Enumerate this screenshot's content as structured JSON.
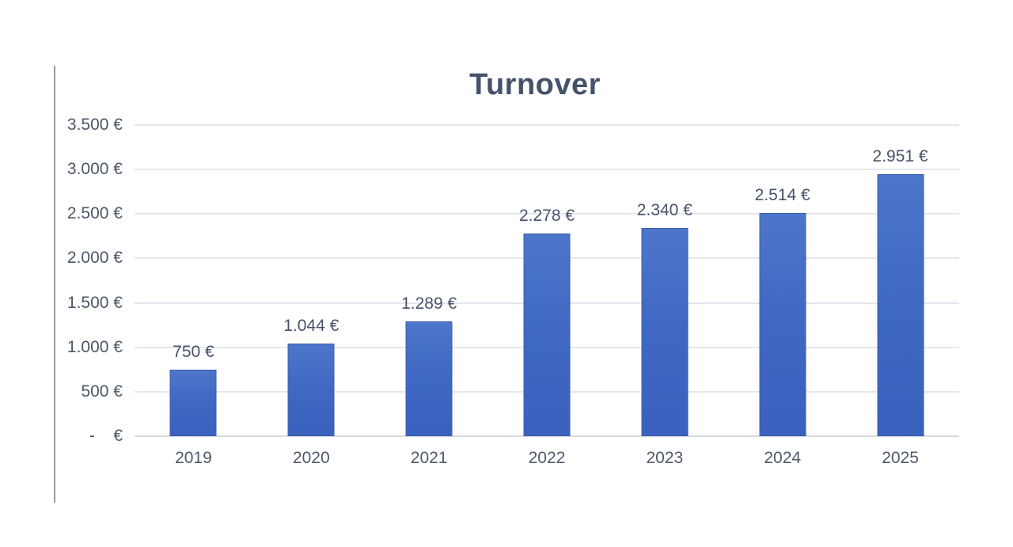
{
  "chart_data": {
    "type": "bar",
    "title": "Turnover",
    "categories": [
      "2019",
      "2020",
      "2021",
      "2022",
      "2023",
      "2024",
      "2025"
    ],
    "values": [
      750,
      1044,
      1289,
      2278,
      2340,
      2514,
      2951
    ],
    "bar_labels": [
      "750 €",
      "1.044 €",
      "1.289 €",
      "2.278 €",
      "2.340 €",
      "2.514 €",
      "2.951 €"
    ],
    "xlabel": "",
    "ylabel": "",
    "ylim": [
      0,
      3500
    ],
    "y_ticks": [
      {
        "value": 3500,
        "label": "3.500 €"
      },
      {
        "value": 3000,
        "label": "3.000 €"
      },
      {
        "value": 2500,
        "label": "2.500 €"
      },
      {
        "value": 2000,
        "label": "2.000 €"
      },
      {
        "value": 1500,
        "label": "1.500 €"
      },
      {
        "value": 1000,
        "label": "1.000 €"
      },
      {
        "value": 500,
        "label": "500 €"
      },
      {
        "value": 0,
        "label": "-    €"
      }
    ],
    "grid": true,
    "legend": "none",
    "colors": {
      "bar_fill_top": "#4d76ca",
      "bar_fill_bottom": "#3a61bd",
      "bar_border": "#3c5fa9",
      "gridline": "#e4e7ed",
      "axis_line": "#d6dae1",
      "title_text": "#44526b",
      "tick_text": "#4b5768",
      "data_label_text": "#47536a",
      "decor_line": "#9b9b9b",
      "background": "#ffffff"
    }
  }
}
